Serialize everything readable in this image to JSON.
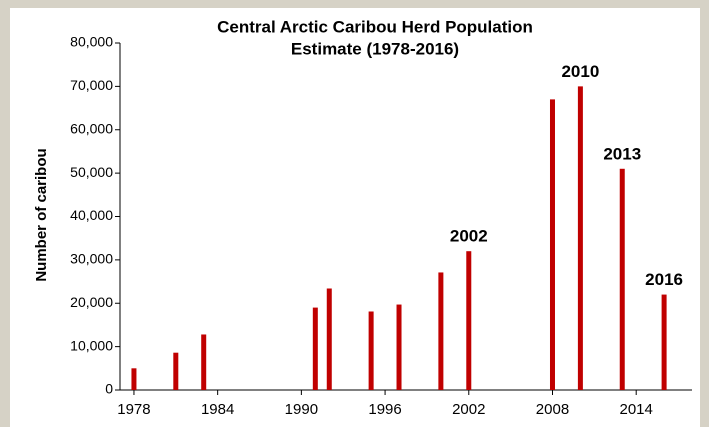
{
  "chart_data": {
    "type": "bar",
    "title": [
      "Central Arctic Caribou Herd Population",
      "Estimate (1978-2016)"
    ],
    "ylabel": "Number of caribou",
    "x": [
      1978,
      1981,
      1983,
      1991,
      1992,
      1995,
      1997,
      2000,
      2002,
      2008,
      2010,
      2013,
      2016
    ],
    "values": [
      5000,
      8600,
      12800,
      19000,
      23400,
      18100,
      19700,
      27100,
      32000,
      67000,
      70000,
      51000,
      22000
    ],
    "color": "#c00000",
    "xlim": [
      1977,
      2018
    ],
    "xticks": [
      1978,
      1984,
      1990,
      1996,
      2002,
      2008,
      2014
    ],
    "ylim": [
      0,
      80000
    ],
    "yticks": [
      0,
      {
        "value": 10000,
        "label": "10,000"
      },
      {
        "value": 20000,
        "label": "20,000"
      },
      {
        "value": 30000,
        "label": "30,000"
      },
      {
        "value": 40000,
        "label": "40,000"
      },
      {
        "value": 50000,
        "label": "50,000"
      },
      {
        "value": 60000,
        "label": "60,000"
      },
      {
        "value": 70000,
        "label": "70,000"
      },
      {
        "value": 80000,
        "label": "80,000"
      }
    ],
    "annotations": [
      {
        "text": "2002",
        "x": 2002
      },
      {
        "text": "2010",
        "x": 2010
      },
      {
        "text": "2013",
        "x": 2013
      },
      {
        "text": "2016",
        "x": 2016
      }
    ]
  }
}
